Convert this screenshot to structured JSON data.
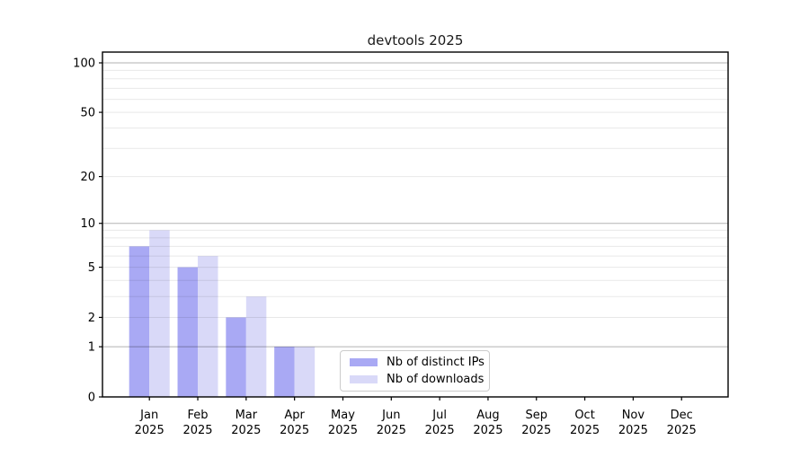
{
  "chart_data": {
    "type": "bar",
    "title": "devtools 2025",
    "categories": [
      "Jan",
      "Feb",
      "Mar",
      "Apr",
      "May",
      "Jun",
      "Jul",
      "Aug",
      "Sep",
      "Oct",
      "Nov",
      "Dec"
    ],
    "x_sublabel_year": "2025",
    "series": [
      {
        "name": "Nb of distinct IPs",
        "color": "#a9a9f4",
        "values": [
          7,
          5,
          2,
          1,
          0,
          0,
          0,
          0,
          0,
          0,
          0,
          0
        ]
      },
      {
        "name": "Nb of downloads",
        "color": "#d9d9f8",
        "values": [
          9,
          6,
          3,
          1,
          0,
          0,
          0,
          0,
          0,
          0,
          0,
          0
        ]
      }
    ],
    "yscale": "log(1+v)",
    "ylim": [
      0,
      116
    ],
    "y_ticks": [
      0,
      1,
      2,
      5,
      10,
      20,
      50,
      100
    ],
    "y_major_gridlines": [
      1,
      10,
      100
    ],
    "y_minor_gridlines": [
      2,
      3,
      4,
      5,
      6,
      7,
      8,
      9,
      20,
      30,
      40,
      50,
      60,
      70,
      80,
      90
    ],
    "grid": "horizontal only",
    "legend_position": "lower center (inside plot)",
    "colors": {
      "background": "#ffffff",
      "axis": "#000000",
      "major_grid": "#b3b3b3",
      "minor_grid": "#e8e8e8",
      "tick_text": "#000000",
      "title_text": "#1a1a1a",
      "legend_border": "#cccccc"
    }
  }
}
